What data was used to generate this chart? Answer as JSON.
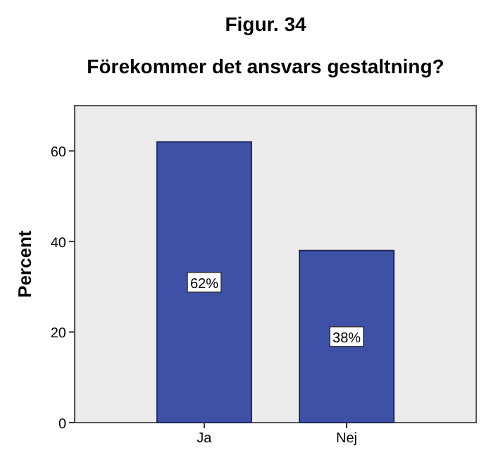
{
  "chart_data": {
    "type": "bar",
    "title": "Figur. 34",
    "subtitle": "Förekommer det ansvars gestaltning?",
    "ylabel": "Percent",
    "categories": [
      "Ja",
      "Nej"
    ],
    "values": [
      62,
      38
    ],
    "value_labels": [
      "62%",
      "38%"
    ],
    "color": "#3f51a6",
    "ylim": [
      0,
      70
    ],
    "yticks": [
      0,
      20,
      40,
      60
    ],
    "grid": false
  }
}
